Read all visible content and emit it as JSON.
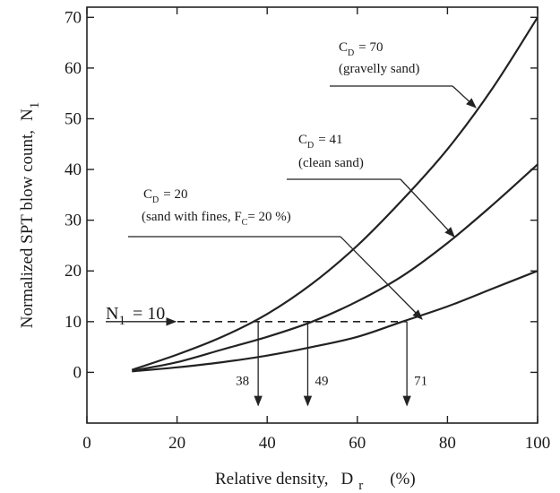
{
  "chart_data": {
    "type": "line",
    "xlabel": "Relative density,",
    "xlabel_symbol": "D",
    "xlabel_sub": "r",
    "xlabel_unit": "(%)",
    "ylabel": "Normalized SPT blow count,",
    "ylabel_symbol": "N",
    "ylabel_sub": "1",
    "xlim": [
      0,
      100
    ],
    "ylim": [
      -10,
      72
    ],
    "xticks": [
      0,
      20,
      40,
      60,
      80,
      100
    ],
    "yticks": [
      0,
      10,
      20,
      30,
      40,
      50,
      60,
      70
    ],
    "grid": false,
    "series": [
      {
        "name": "C_D = 70 (gravelly sand)",
        "x": [
          10,
          20,
          30,
          40,
          50,
          60,
          70,
          80,
          90,
          100
        ],
        "y": [
          0.5,
          3.5,
          7,
          11.5,
          17.5,
          25,
          34,
          44,
          56,
          70
        ]
      },
      {
        "name": "C_D = 41 (clean sand)",
        "x": [
          10,
          20,
          30,
          40,
          50,
          60,
          70,
          80,
          90,
          100
        ],
        "y": [
          0.3,
          2,
          4.5,
          7,
          10,
          14,
          19,
          25.5,
          33,
          41
        ]
      },
      {
        "name": "C_D = 20 (sand with fines, F_C = 20 %)",
        "x": [
          10,
          20,
          30,
          40,
          50,
          60,
          70,
          80,
          90,
          100
        ],
        "y": [
          0.2,
          1,
          2,
          3.3,
          5,
          7,
          10,
          13,
          16.5,
          20
        ]
      }
    ],
    "reference_line": {
      "y": 10,
      "label_symbol": "N",
      "label_sub": "1",
      "label_value": "= 10"
    },
    "drop_points": [
      {
        "x": 38,
        "label": "38"
      },
      {
        "x": 49,
        "label": "49"
      },
      {
        "x": 71,
        "label": "71"
      }
    ],
    "annotations": [
      {
        "c": "C",
        "sub": "D",
        "value": "= 70",
        "desc": "(gravelly sand)"
      },
      {
        "c": "C",
        "sub": "D",
        "value": "= 41",
        "desc": "(clean sand)"
      },
      {
        "c": "C",
        "sub": "D",
        "value": "= 20",
        "desc_pre": "(sand with fines, F",
        "desc_sub": "C",
        "desc_post": "= 20 %)"
      }
    ]
  }
}
